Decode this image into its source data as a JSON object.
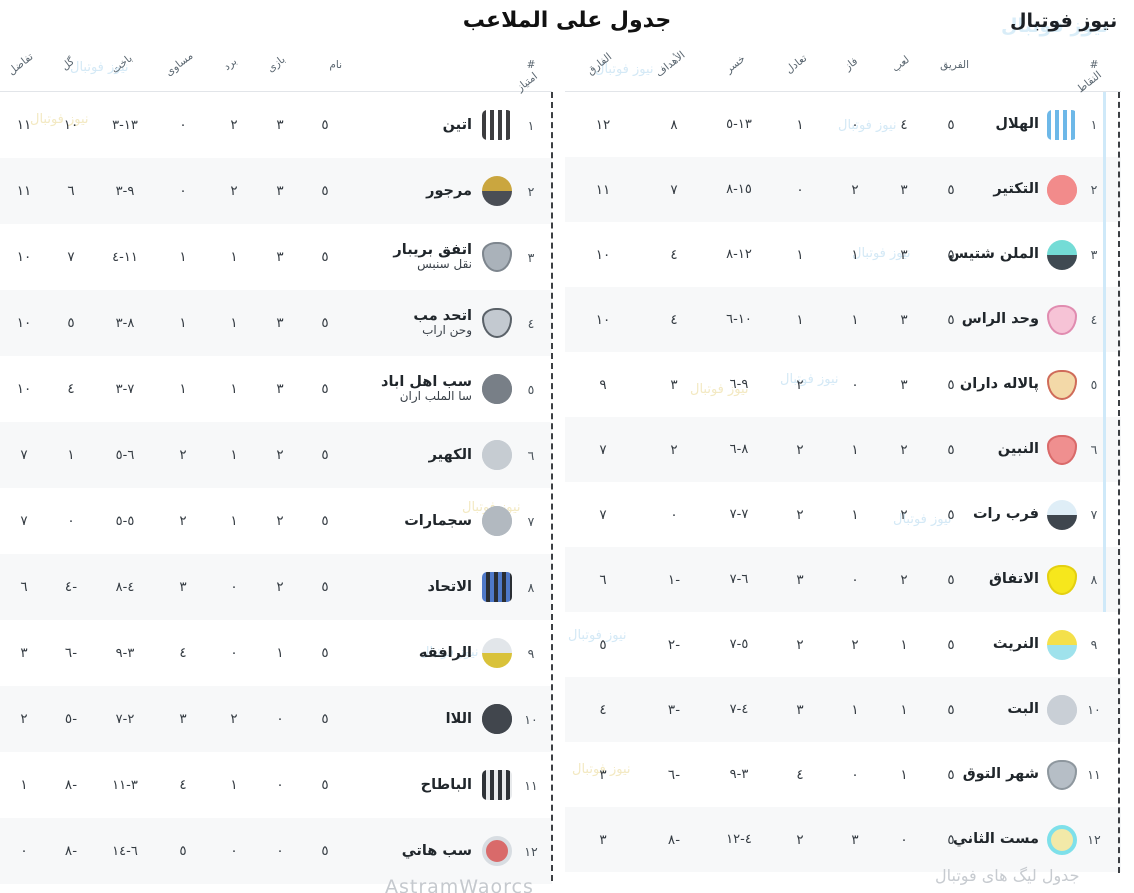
{
  "titles": {
    "main": "جدول على الملاعب",
    "site": "نیوز فوتبال"
  },
  "watermarks": {
    "scatter": "نیوز فوتبال",
    "bottom_right": "جدول لیگ های فوتبال",
    "bottom_center": "AstramWaorcs"
  },
  "accent": {
    "qualification_bar": "#cfe9f9",
    "row_alt": "#f7f8f9",
    "dashed_border": "#3c3f43",
    "site_title_halo": "#d9edf8"
  },
  "columns_semantic": [
    "rank",
    "team",
    "played",
    "won",
    "drawn",
    "lost",
    "goals",
    "goal_diff",
    "points"
  ],
  "tables": {
    "right": {
      "headers": [
        "#",
        "الفريق",
        "لعب",
        "فاز",
        "تعادل",
        "خسر",
        "الأهداف",
        "الفارق",
        "النقاط"
      ],
      "rows": [
        {
          "rank": "١",
          "name": "الهلال",
          "name2": "",
          "logo": {
            "shape": "stripes",
            "c1": "#6db8e8",
            "c2": "#ffffff"
          },
          "p": "٥",
          "w": "٤",
          "d": "٠",
          "l": "١",
          "goals": "١٣-٥",
          "gd": "٨",
          "pts": "١٢"
        },
        {
          "rank": "٢",
          "name": "التكتير",
          "name2": "",
          "logo": {
            "shape": "circle",
            "c1": "#f28b8b",
            "c2": "#f28b8b"
          },
          "p": "٥",
          "w": "٣",
          "d": "٢",
          "l": "٠",
          "goals": "١٥-٨",
          "gd": "٧",
          "pts": "١١"
        },
        {
          "rank": "٣",
          "name": "الملن شتيس",
          "name2": "",
          "logo": {
            "shape": "circle2",
            "c1": "#74dcd6",
            "c2": "#3f4a52"
          },
          "p": "٥",
          "w": "٣",
          "d": "١",
          "l": "١",
          "goals": "١٢-٨",
          "gd": "٤",
          "pts": "١٠"
        },
        {
          "rank": "٤",
          "name": "وحد الراس",
          "name2": "",
          "logo": {
            "shape": "shield",
            "c1": "#f6c3d6",
            "c2": "#e08cb0"
          },
          "p": "٥",
          "w": "٣",
          "d": "١",
          "l": "١",
          "goals": "١٠-٦",
          "gd": "٤",
          "pts": "١٠"
        },
        {
          "rank": "٥",
          "name": "پالاله داران",
          "name2": "",
          "logo": {
            "shape": "shield",
            "c1": "#f3d9a8",
            "c2": "#cf6b5a"
          },
          "p": "٥",
          "w": "٣",
          "d": "٠",
          "l": "٢",
          "goals": "٩-٦",
          "gd": "٣",
          "pts": "٩"
        },
        {
          "rank": "٦",
          "name": "النبين",
          "name2": "",
          "logo": {
            "shape": "shield",
            "c1": "#ef8f8f",
            "c2": "#d96a6a"
          },
          "p": "٥",
          "w": "٢",
          "d": "١",
          "l": "٢",
          "goals": "٨-٦",
          "gd": "٢",
          "pts": "٧"
        },
        {
          "rank": "٧",
          "name": "فرب رات",
          "name2": "",
          "logo": {
            "shape": "circle2",
            "c1": "#dfeef7",
            "c2": "#3e464e"
          },
          "p": "٥",
          "w": "٢",
          "d": "١",
          "l": "٢",
          "goals": "٧-٧",
          "gd": "٠",
          "pts": "٧"
        },
        {
          "rank": "٨",
          "name": "الاتفاق",
          "name2": "",
          "logo": {
            "shape": "shield",
            "c1": "#f6e71c",
            "c2": "#e3cf12"
          },
          "p": "٥",
          "w": "٢",
          "d": "٠",
          "l": "٣",
          "goals": "٦-٧",
          "gd": "-١",
          "pts": "٦"
        },
        {
          "rank": "٩",
          "name": "النريث",
          "name2": "",
          "logo": {
            "shape": "circle2",
            "c1": "#f4e04a",
            "c2": "#9fe2ec"
          },
          "p": "٥",
          "w": "١",
          "d": "٢",
          "l": "٢",
          "goals": "٥-٧",
          "gd": "-٢",
          "pts": "٥"
        },
        {
          "rank": "١٠",
          "name": "البت",
          "name2": "",
          "logo": {
            "shape": "circle",
            "c1": "#c9cfd6",
            "c2": "#c9cfd6"
          },
          "p": "٥",
          "w": "١",
          "d": "١",
          "l": "٣",
          "goals": "٤-٧",
          "gd": "-٣",
          "pts": "٤"
        },
        {
          "rank": "١١",
          "name": "شهر التوق",
          "name2": "",
          "logo": {
            "shape": "shield",
            "c1": "#b6bec6",
            "c2": "#8e979e"
          },
          "p": "٥",
          "w": "١",
          "d": "٠",
          "l": "٤",
          "goals": "٣-٩",
          "gd": "-٦",
          "pts": "٣"
        },
        {
          "rank": "١٢",
          "name": "مست الثاني",
          "name2": "",
          "logo": {
            "shape": "ring",
            "c1": "#7ee0ea",
            "c2": "#f2e9a8"
          },
          "p": "٥",
          "w": "٠",
          "d": "٣",
          "l": "٢",
          "goals": "٤-١٢",
          "gd": "-٨",
          "pts": "٣"
        }
      ]
    },
    "left": {
      "headers": [
        "#",
        "نام",
        "بازی",
        "برد",
        "مساوی",
        "باخت",
        "گل",
        "تفاضل",
        "امتیاز"
      ],
      "rows": [
        {
          "rank": "١",
          "name": "اتین",
          "name2": "",
          "logo": {
            "shape": "stripes",
            "c1": "#3d3d3f",
            "c2": "#ffffff"
          },
          "p": "٥",
          "w": "٣",
          "d": "٢",
          "l": "٠",
          "goals": "١٣-٣",
          "gd": "١٠",
          "pts": "١١"
        },
        {
          "rank": "٢",
          "name": "مرجور",
          "name2": "",
          "logo": {
            "shape": "circle2",
            "c1": "#caa63f",
            "c2": "#4a4e55"
          },
          "p": "٥",
          "w": "٣",
          "d": "٢",
          "l": "٠",
          "goals": "٩-٣",
          "gd": "٦",
          "pts": "١١"
        },
        {
          "rank": "٣",
          "name": "اتفق بریبار",
          "name2": "نقل سنبس",
          "logo": {
            "shape": "shield",
            "c1": "#aab2ba",
            "c2": "#7e868e"
          },
          "p": "٥",
          "w": "٣",
          "d": "١",
          "l": "١",
          "goals": "١١-٤",
          "gd": "٧",
          "pts": "١٠"
        },
        {
          "rank": "٤",
          "name": "اتحد مب",
          "name2": "وحن اراب",
          "logo": {
            "shape": "shield",
            "c1": "#c3c9d0",
            "c2": "#5a6168"
          },
          "p": "٥",
          "w": "٣",
          "d": "١",
          "l": "١",
          "goals": "٨-٣",
          "gd": "٥",
          "pts": "١٠"
        },
        {
          "rank": "٥",
          "name": "سب اهل اباد",
          "name2": "سا الملب اران",
          "logo": {
            "shape": "circle",
            "c1": "#787f87",
            "c2": "#787f87"
          },
          "p": "٥",
          "w": "٣",
          "d": "١",
          "l": "١",
          "goals": "٧-٣",
          "gd": "٤",
          "pts": "١٠"
        },
        {
          "rank": "٦",
          "name": "الكهير",
          "name2": "",
          "logo": {
            "shape": "circle",
            "c1": "#c6ccd2",
            "c2": "#c6ccd2"
          },
          "p": "٥",
          "w": "٢",
          "d": "١",
          "l": "٢",
          "goals": "٦-٥",
          "gd": "١",
          "pts": "٧"
        },
        {
          "rank": "٧",
          "name": "سجمارات",
          "name2": "",
          "logo": {
            "shape": "circle",
            "c1": "#b2b9c0",
            "c2": "#b2b9c0"
          },
          "p": "٥",
          "w": "٢",
          "d": "١",
          "l": "٢",
          "goals": "٥-٥",
          "gd": "٠",
          "pts": "٧"
        },
        {
          "rank": "٨",
          "name": "الاتحاد",
          "name2": "",
          "logo": {
            "shape": "stripes",
            "c1": "#4f79c9",
            "c2": "#2a2e33"
          },
          "p": "٥",
          "w": "٢",
          "d": "٠",
          "l": "٣",
          "goals": "٤-٨",
          "gd": "-٤",
          "pts": "٦"
        },
        {
          "rank": "٩",
          "name": "الرافقه",
          "name2": "",
          "logo": {
            "shape": "circle2",
            "c1": "#e2e6ea",
            "c2": "#d9c23a"
          },
          "p": "٥",
          "w": "١",
          "d": "٠",
          "l": "٤",
          "goals": "٣-٩",
          "gd": "-٦",
          "pts": "٣"
        },
        {
          "rank": "١٠",
          "name": "اللاا",
          "name2": "",
          "logo": {
            "shape": "circle",
            "c1": "#41464d",
            "c2": "#41464d"
          },
          "p": "٥",
          "w": "٠",
          "d": "٢",
          "l": "٣",
          "goals": "٢-٧",
          "gd": "-٥",
          "pts": "٢"
        },
        {
          "rank": "١١",
          "name": "الباطاح",
          "name2": "",
          "logo": {
            "shape": "stripes",
            "c1": "#2e3237",
            "c2": "#e8eaec"
          },
          "p": "٥",
          "w": "٠",
          "d": "١",
          "l": "٤",
          "goals": "٣-١١",
          "gd": "-٨",
          "pts": "١"
        },
        {
          "rank": "١٢",
          "name": "سب هاتي",
          "name2": "",
          "logo": {
            "shape": "ring",
            "c1": "#d8dde2",
            "c2": "#d96a6a"
          },
          "p": "٥",
          "w": "٠",
          "d": "٠",
          "l": "٥",
          "goals": "٦-١٤",
          "gd": "-٨",
          "pts": "٠"
        }
      ]
    }
  }
}
